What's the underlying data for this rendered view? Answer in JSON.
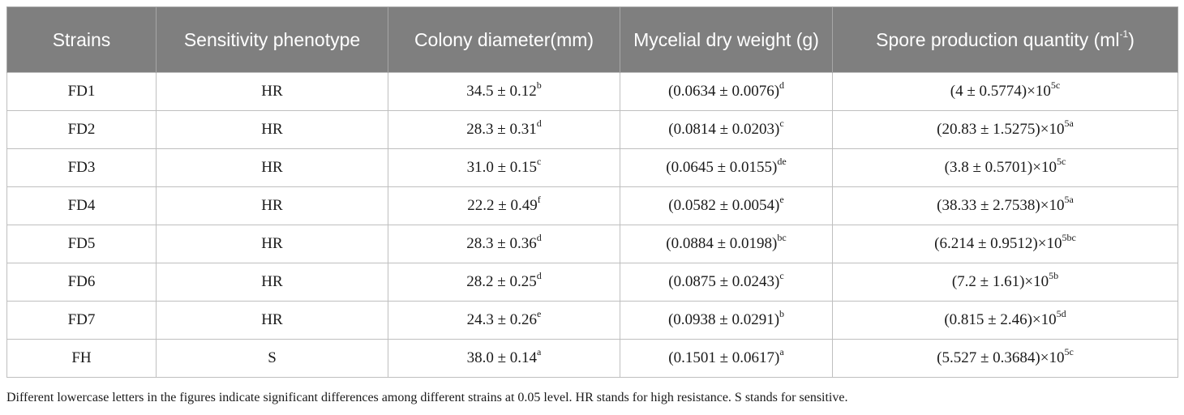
{
  "table": {
    "headers": [
      {
        "text": "Strains",
        "sup": ""
      },
      {
        "text": "Sensitivity phenotype",
        "sup": ""
      },
      {
        "text": "Colony diameter(mm)",
        "sup": ""
      },
      {
        "text": "Mycelial dry weight (g)",
        "sup": ""
      },
      {
        "text": "Spore production quantity (ml",
        "sup": "-1",
        "after": ")"
      }
    ],
    "rows": [
      {
        "strain": "FD1",
        "phenotype": "HR",
        "colony": {
          "value": "34.5 ± 0.12",
          "sup": "b"
        },
        "weight": {
          "value": "(0.0634 ± 0.0076)",
          "sup": "d"
        },
        "spore": {
          "value": "(4 ± 0.5774)×10",
          "sup": "5c"
        }
      },
      {
        "strain": "FD2",
        "phenotype": "HR",
        "colony": {
          "value": "28.3 ± 0.31",
          "sup": "d"
        },
        "weight": {
          "value": "(0.0814 ± 0.0203)",
          "sup": "c"
        },
        "spore": {
          "value": "(20.83 ± 1.5275)×10",
          "sup": "5a"
        }
      },
      {
        "strain": "FD3",
        "phenotype": "HR",
        "colony": {
          "value": "31.0 ± 0.15",
          "sup": "c"
        },
        "weight": {
          "value": "(0.0645 ± 0.0155)",
          "sup": "de"
        },
        "spore": {
          "value": "(3.8 ± 0.5701)×10",
          "sup": "5c"
        }
      },
      {
        "strain": "FD4",
        "phenotype": "HR",
        "colony": {
          "value": "22.2 ± 0.49",
          "sup": "f"
        },
        "weight": {
          "value": "(0.0582 ± 0.0054)",
          "sup": "e"
        },
        "spore": {
          "value": "(38.33 ± 2.7538)×10",
          "sup": "5a"
        }
      },
      {
        "strain": "FD5",
        "phenotype": "HR",
        "colony": {
          "value": "28.3 ± 0.36",
          "sup": "d"
        },
        "weight": {
          "value": "(0.0884 ± 0.0198)",
          "sup": "bc"
        },
        "spore": {
          "value": "(6.214 ± 0.9512)×10",
          "sup": "5bc"
        }
      },
      {
        "strain": "FD6",
        "phenotype": "HR",
        "colony": {
          "value": "28.2 ± 0.25",
          "sup": "d"
        },
        "weight": {
          "value": "(0.0875 ± 0.0243)",
          "sup": "c"
        },
        "spore": {
          "value": "(7.2 ± 1.61)×10",
          "sup": "5b"
        }
      },
      {
        "strain": "FD7",
        "phenotype": "HR",
        "colony": {
          "value": "24.3 ± 0.26",
          "sup": "e"
        },
        "weight": {
          "value": "(0.0938 ± 0.0291)",
          "sup": "b"
        },
        "spore": {
          "value": "(0.815 ± 2.46)×10",
          "sup": "5d"
        }
      },
      {
        "strain": "FH",
        "phenotype": "S",
        "colony": {
          "value": "38.0 ± 0.14",
          "sup": "a"
        },
        "weight": {
          "value": "(0.1501 ± 0.0617)",
          "sup": "a"
        },
        "spore": {
          "value": "(5.527 ± 0.3684)×10",
          "sup": "5c"
        }
      }
    ]
  },
  "footnote": "Different lowercase letters in the figures indicate significant differences among different strains at 0.05 level. HR stands for high resistance. S stands for sensitive."
}
